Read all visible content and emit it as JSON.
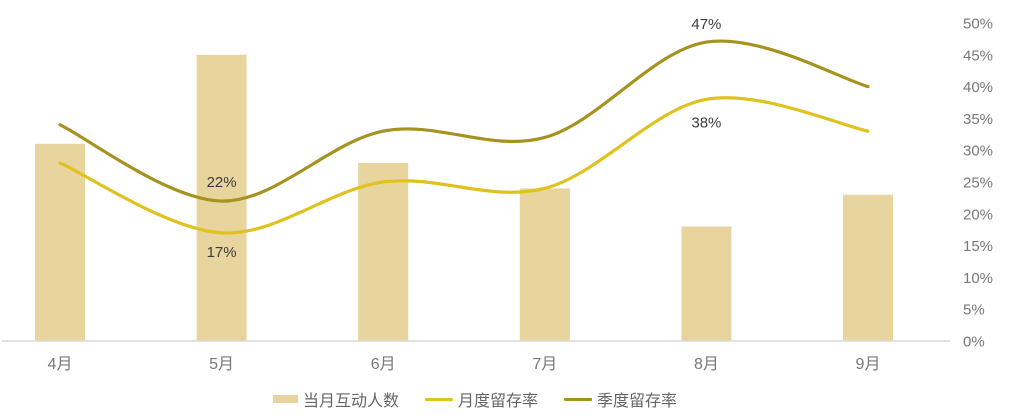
{
  "chart_data": {
    "type": "combo",
    "title": "",
    "categories": [
      "4月",
      "5月",
      "6月",
      "7月",
      "8月",
      "9月"
    ],
    "series": [
      {
        "name": "当月互动人数",
        "type": "bar",
        "color": "#e8d59e",
        "values": [
          31,
          45,
          28,
          24,
          18,
          23
        ]
      },
      {
        "name": "月度留存率",
        "type": "line",
        "color": "#dfc21f",
        "values": [
          28,
          17,
          25,
          24,
          38,
          33
        ]
      },
      {
        "name": "季度留存率",
        "type": "line",
        "color": "#a6921f",
        "values": [
          34,
          22,
          33,
          32,
          47,
          40
        ]
      }
    ],
    "annotations": [
      {
        "series": 2,
        "point": 1,
        "text": "22%",
        "dy": -14
      },
      {
        "series": 1,
        "point": 1,
        "text": "17%",
        "dy": 24
      },
      {
        "series": 2,
        "point": 4,
        "text": "47%",
        "dy": -13
      },
      {
        "series": 1,
        "point": 4,
        "text": "38%",
        "dy": 28
      }
    ],
    "y_axis": {
      "side": "right",
      "min": 0,
      "max": 50,
      "step": 5,
      "tick_labels": [
        "0%",
        "5%",
        "10%",
        "15%",
        "20%",
        "25%",
        "30%",
        "35%",
        "40%",
        "45%",
        "50%"
      ]
    },
    "x_axis": {
      "labels": [
        "4月",
        "5月",
        "6月",
        "7月",
        "8月",
        "9月"
      ]
    },
    "legend_position": "bottom",
    "grid": "off",
    "colors": {
      "axis_text": "#787878",
      "data_label_text": "#3d3d3d",
      "axis_line": "#d9d9d9",
      "legend_text": "#666666"
    }
  }
}
